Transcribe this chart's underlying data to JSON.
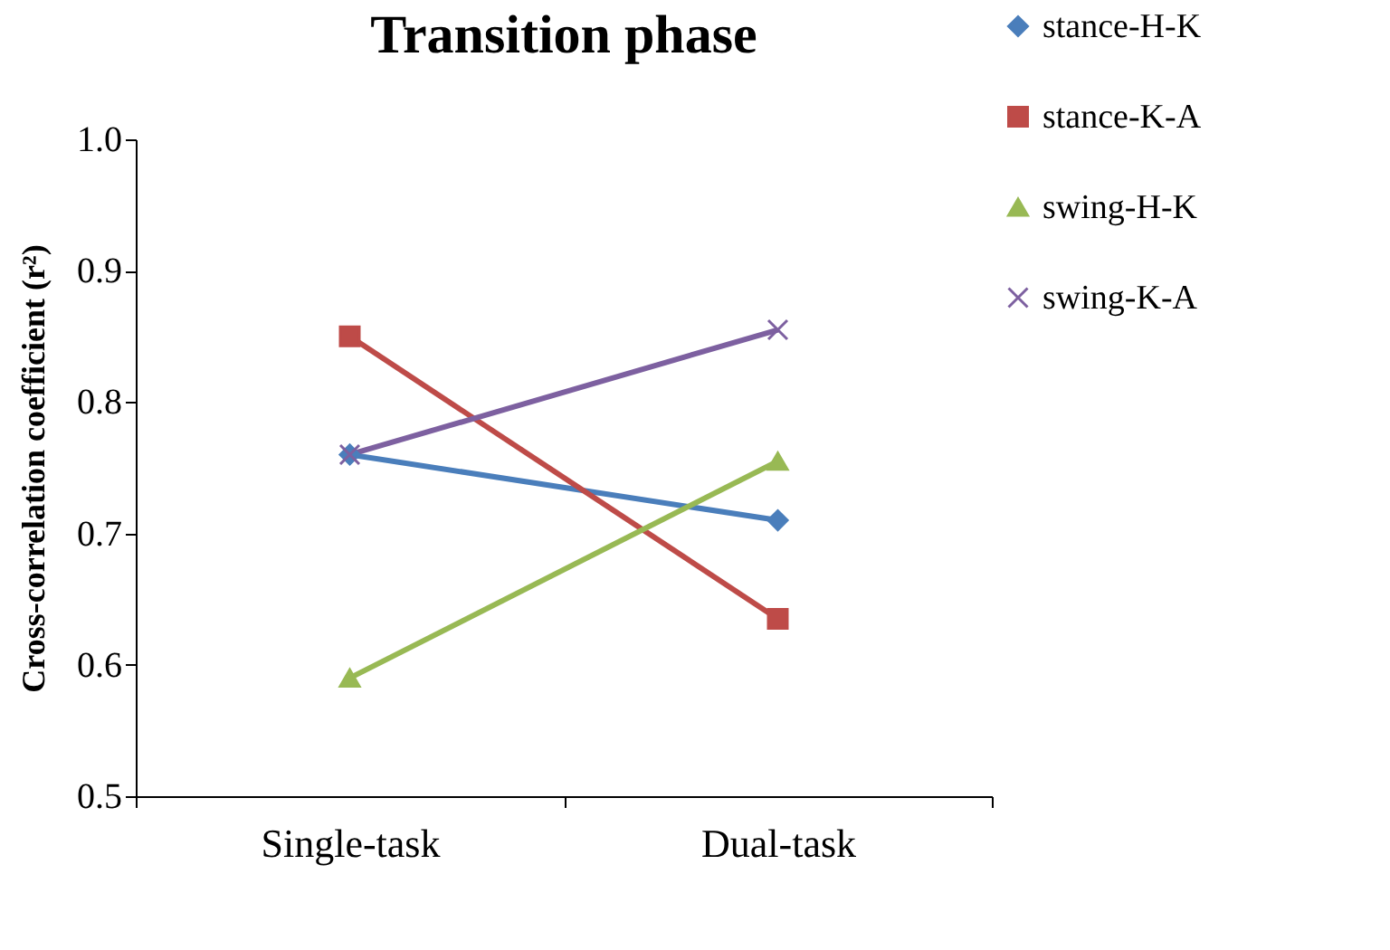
{
  "chart_data": {
    "type": "line",
    "title": "Transition phase",
    "ylabel": "Cross-correlation coefficient (r²)",
    "categories": [
      "Single-task",
      "Dual-task"
    ],
    "series": [
      {
        "name": "stance-H-K",
        "color": "#4a7ebb",
        "marker": "diamond",
        "values": [
          0.76,
          0.71
        ]
      },
      {
        "name": "stance-K-A",
        "color": "#be4b48",
        "marker": "square",
        "values": [
          0.85,
          0.635
        ]
      },
      {
        "name": "swing-H-K",
        "color": "#98b954",
        "marker": "triangle",
        "values": [
          0.59,
          0.755
        ]
      },
      {
        "name": "swing-K-A",
        "color": "#7d60a0",
        "marker": "cross",
        "values": [
          0.76,
          0.855
        ]
      }
    ],
    "ylim": [
      0.5,
      1.0
    ],
    "yticks": [
      {
        "value": 0.5,
        "label": "0.5"
      },
      {
        "value": 0.6,
        "label": "0.6"
      },
      {
        "value": 0.7,
        "label": "0.7"
      },
      {
        "value": 0.8,
        "label": "0.8"
      },
      {
        "value": 0.9,
        "label": "0.9"
      },
      {
        "value": 1.0,
        "label": "1.0"
      }
    ],
    "grid": false,
    "legend": "top right"
  }
}
